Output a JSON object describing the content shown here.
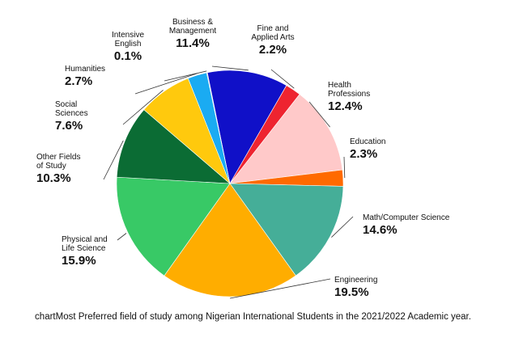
{
  "caption": "chartMost Preferred field of study among Nigerian International Students in the 2021/2022 Academic year.",
  "chart_data": {
    "type": "pie",
    "title": "",
    "slices": [
      {
        "label": [
          "Business &",
          "Management"
        ],
        "value": 11.4,
        "value_text": "11.4%",
        "color": "#1010c8"
      },
      {
        "label": [
          "Fine and",
          "Applied Arts"
        ],
        "value": 2.2,
        "value_text": "2.2%",
        "color": "#ee2430"
      },
      {
        "label": [
          "Health",
          "Professions"
        ],
        "value": 12.4,
        "value_text": "12.4%",
        "color": "#ffc9c9"
      },
      {
        "label": [
          "Education"
        ],
        "value": 2.3,
        "value_text": "2.3%",
        "color": "#ff6a00"
      },
      {
        "label": [
          "Math/Computer Science"
        ],
        "value": 14.6,
        "value_text": "14.6%",
        "color": "#45ae98"
      },
      {
        "label": [
          "Engineering"
        ],
        "value": 19.5,
        "value_text": "19.5%",
        "color": "#ffad00"
      },
      {
        "label": [
          "Physical and",
          "Life Science"
        ],
        "value": 15.9,
        "value_text": "15.9%",
        "color": "#38c966"
      },
      {
        "label": [
          "Other Fields",
          "of Study"
        ],
        "value": 10.3,
        "value_text": "10.3%",
        "color": "#0b6c34"
      },
      {
        "label": [
          "Social",
          "Sciences"
        ],
        "value": 7.6,
        "value_text": "7.6%",
        "color": "#ffc90d"
      },
      {
        "label": [
          "Humanities"
        ],
        "value": 2.7,
        "value_text": "2.7%",
        "color": "#1aabf2"
      },
      {
        "label": [
          "Intensive",
          "English"
        ],
        "value": 0.1,
        "value_text": "0.1%",
        "color": "#c9c9c9"
      }
    ]
  }
}
